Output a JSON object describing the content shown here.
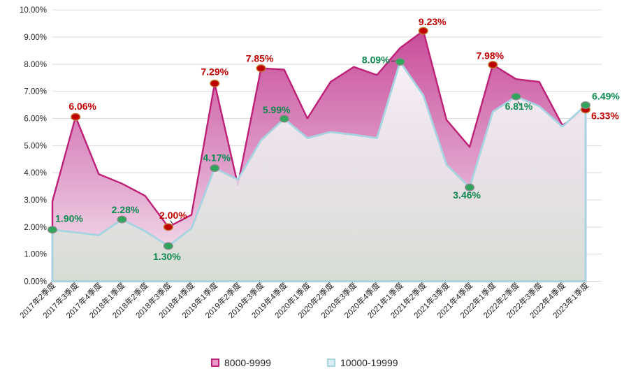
{
  "chart_data": {
    "type": "area",
    "title": "",
    "grid": true,
    "legend_position": "bottom",
    "categories": [
      "2017年2季度",
      "2017年3季度",
      "2017年4季度",
      "2018年1季度",
      "2018年2季度",
      "2018年3季度",
      "2018年4季度",
      "2019年1季度",
      "2019年2季度",
      "2019年3季度",
      "2019年4季度",
      "2020年1季度",
      "2020年2季度",
      "2020年3季度",
      "2020年4季度",
      "2021年1季度",
      "2021年2季度",
      "2021年3季度",
      "2021年4季度",
      "2022年1季度",
      "2022年2季度",
      "2022年3季度",
      "2022年4季度",
      "2023年1季度"
    ],
    "y_axis": {
      "min": 0,
      "max": 10,
      "step": 1,
      "unit": "%",
      "tick_labels": [
        "0.00%",
        "1.00%",
        "2.00%",
        "3.00%",
        "4.00%",
        "5.00%",
        "6.00%",
        "7.00%",
        "8.00%",
        "9.00%",
        "10.00%"
      ]
    },
    "series": [
      {
        "name": "8000-9999",
        "line_color": "#BE2077",
        "fill_top": "#C43D90",
        "fill_mid": "#DA8CC0",
        "fill_bottom": "#F7ECF3",
        "label_color": "#C00000",
        "marker_fill": "#C00000",
        "marker_stroke": "#C1762B",
        "legend_fill": "#E79AC6",
        "values": [
          2.95,
          6.06,
          3.95,
          3.6,
          3.15,
          2.0,
          2.45,
          7.29,
          3.55,
          7.85,
          7.8,
          6.0,
          7.35,
          7.9,
          7.6,
          8.6,
          9.23,
          5.95,
          4.95,
          7.98,
          7.45,
          7.35,
          5.75,
          6.33
        ],
        "point_labels": [
          {
            "i": 1,
            "text": "6.06%",
            "dx": 10,
            "dy": -10
          },
          {
            "i": 5,
            "text": "2.00%",
            "dx": 7,
            "dy": -12,
            "leader": [
              3,
              -9,
              6,
              -5
            ]
          },
          {
            "i": 7,
            "text": "7.29%",
            "dx": 0,
            "dy": -12
          },
          {
            "i": 9,
            "text": "7.85%",
            "dx": -2,
            "dy": -9
          },
          {
            "i": 16,
            "text": "9.23%",
            "dx": 13,
            "dy": -8
          },
          {
            "i": 19,
            "text": "7.98%",
            "dx": -4,
            "dy": -8
          },
          {
            "i": 23,
            "text": "6.33%",
            "dx": 28,
            "dy": 14
          }
        ]
      },
      {
        "name": "10000-19999",
        "line_color": "#A6D4E0",
        "fill_top": "#FCFDFD",
        "fill_mid": "#E9EEEC",
        "fill_bottom": "#D2DACF",
        "label_color": "#0E8A50",
        "marker_fill": "#2FA65C",
        "marker_stroke": "#8A8A8A",
        "legend_fill": "#D9EDF3",
        "values": [
          1.9,
          1.8,
          1.7,
          2.28,
          1.85,
          1.3,
          1.95,
          4.17,
          3.75,
          5.2,
          5.99,
          5.28,
          5.5,
          5.4,
          5.28,
          8.09,
          6.85,
          4.3,
          3.46,
          6.25,
          6.81,
          6.45,
          5.7,
          6.49
        ],
        "point_labels": [
          {
            "i": 0,
            "text": "1.90%",
            "dx": 24,
            "dy": -11
          },
          {
            "i": 3,
            "text": "2.28%",
            "dx": 5,
            "dy": -9
          },
          {
            "i": 5,
            "text": "1.30%",
            "dx": -2,
            "dy": 20
          },
          {
            "i": 7,
            "text": "4.17%",
            "dx": 3,
            "dy": -10
          },
          {
            "i": 10,
            "text": "5.99%",
            "dx": -11,
            "dy": -8
          },
          {
            "i": 15,
            "text": "8.09%",
            "dx": -15,
            "dy": 2,
            "anchor": "end",
            "leader": [
              -13,
              -1,
              -6,
              -1
            ]
          },
          {
            "i": 18,
            "text": "3.46%",
            "dx": -4,
            "dy": 16
          },
          {
            "i": 20,
            "text": "6.81%",
            "dx": 4,
            "dy": 19,
            "leader": [
              3,
              7,
              6,
              13
            ]
          },
          {
            "i": 23,
            "text": "6.49%",
            "dx": 29,
            "dy": -8
          }
        ]
      }
    ],
    "colors": {
      "gridline": "#D9D9D9",
      "axis_text": "#262626",
      "legend_text": "#262626"
    }
  }
}
